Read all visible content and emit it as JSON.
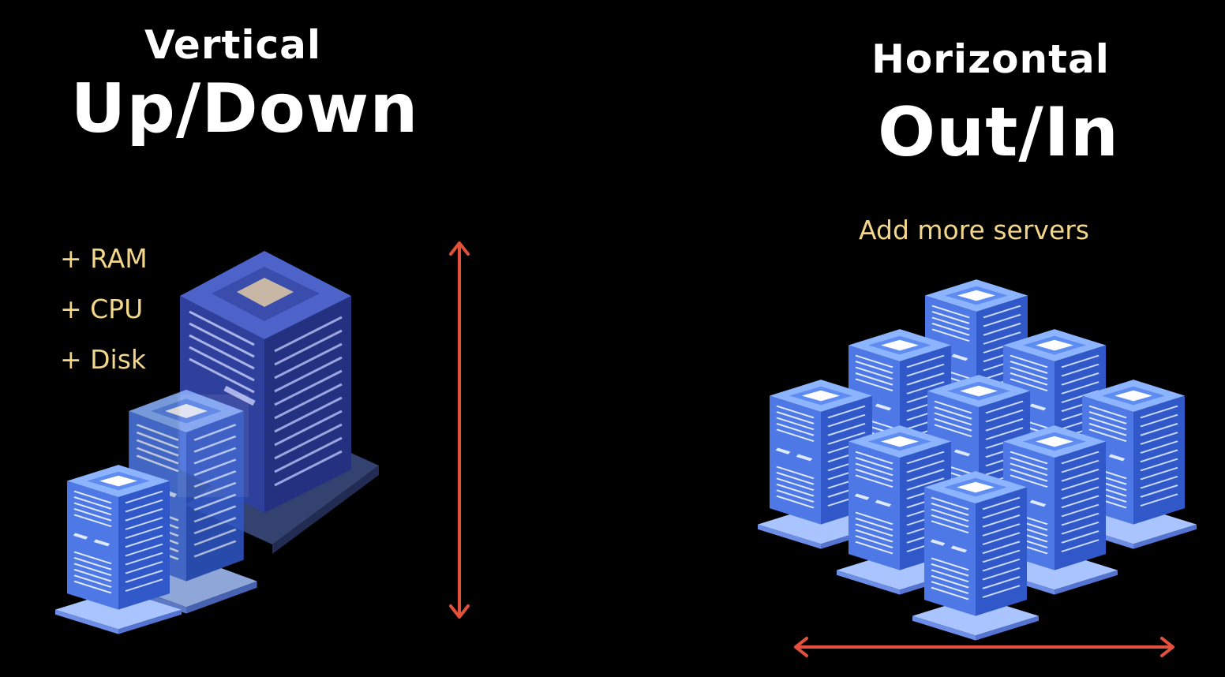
{
  "vertical": {
    "title": "Vertical",
    "subtitle": "Up/Down",
    "resources": [
      "+ RAM",
      "+ CPU",
      "+ Disk"
    ]
  },
  "horizontal": {
    "title": "Horizontal",
    "subtitle": "Out/In",
    "caption": "Add more servers"
  },
  "colors": {
    "background": "#000000",
    "text": "#ffffff",
    "note": "#f2d78a",
    "arrow": "#e3513c",
    "server_front": "#4d78e6",
    "server_side": "#3058c8",
    "server_top": "#8db4ff",
    "big_server_front": "#2e3f9c",
    "big_server_side": "#233180"
  }
}
